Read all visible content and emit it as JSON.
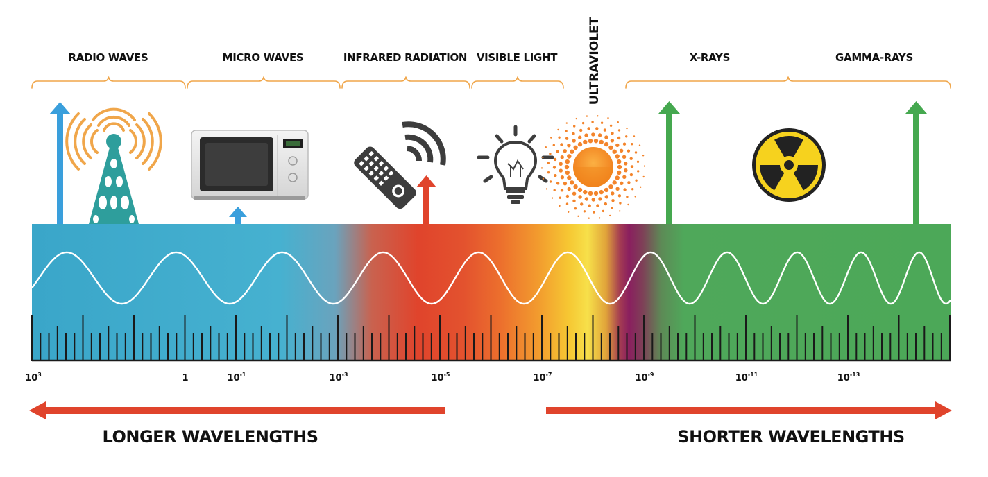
{
  "bands": [
    {
      "key": "radio",
      "label": "RADIO WAVES"
    },
    {
      "key": "micro",
      "label": "MICRO WAVES"
    },
    {
      "key": "infrared",
      "label": "INFRARED RADIATION"
    },
    {
      "key": "visible",
      "label": "VISIBLE LIGHT"
    },
    {
      "key": "ultraviolet",
      "label": "ULTRAVIOLET"
    },
    {
      "key": "xrays",
      "label": "X-RAYS"
    },
    {
      "key": "gamma",
      "label": "GAMMA-RAYS"
    }
  ],
  "scale_ticks": [
    {
      "base": "10",
      "exp": "3"
    },
    {
      "base": "1",
      "exp": ""
    },
    {
      "base": "10",
      "exp": "-1"
    },
    {
      "base": "10",
      "exp": "-3"
    },
    {
      "base": "10",
      "exp": "-5"
    },
    {
      "base": "10",
      "exp": "-7"
    },
    {
      "base": "10",
      "exp": "-9"
    },
    {
      "base": "10",
      "exp": "-11"
    },
    {
      "base": "10",
      "exp": "-13"
    }
  ],
  "directions": {
    "left": "LONGER WAVELENGTHS",
    "right": "SHORTER WAVELENGTHS"
  },
  "icons": [
    "radio-tower-icon",
    "microwave-icon",
    "remote-control-icon",
    "light-bulb-icon",
    "sun-icon",
    "radiation-icon"
  ],
  "colors": {
    "radio": "#3aa6c9",
    "micro": "#44b0cf",
    "infrared": "#e0442c",
    "visible": "#f6de3a",
    "ultraviolet": "#8a1f5f",
    "xray": "#4fa85a",
    "bracket": "#f0a64a",
    "arrow_red": "#e0442c",
    "arrow_blue": "#3a9fdc",
    "arrow_green": "#45a84f"
  }
}
